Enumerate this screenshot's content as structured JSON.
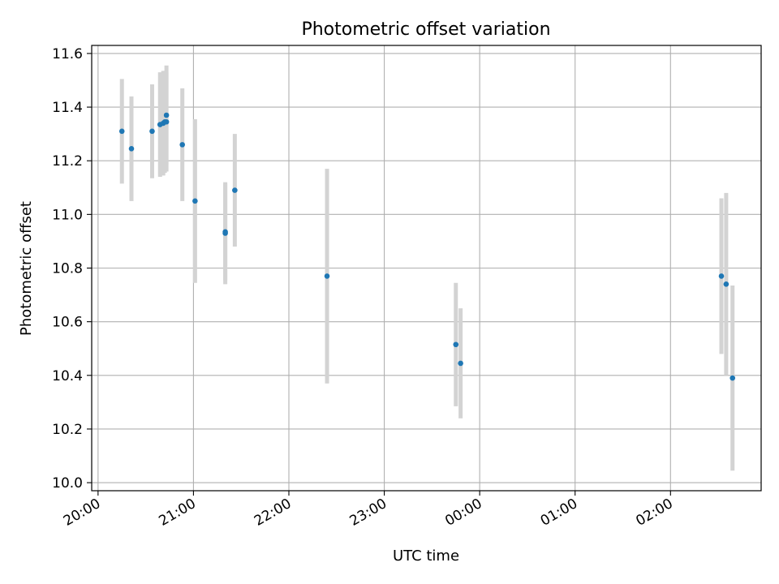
{
  "chart_data": {
    "type": "scatter",
    "title": "Photometric offset variation",
    "xlabel": "UTC time",
    "ylabel": "Photometric offset",
    "grid": true,
    "legend": "none",
    "ylim": [
      9.97,
      11.63
    ],
    "yticks": [
      "10.0",
      "10.2",
      "10.4",
      "10.6",
      "10.8",
      "11.0",
      "11.2",
      "11.4",
      "11.6"
    ],
    "xlim": [
      "19:56",
      "02:57"
    ],
    "xticks": [
      "20:00",
      "21:00",
      "22:00",
      "23:00",
      "00:00",
      "01:00",
      "02:00"
    ],
    "colors": {
      "point": "#1f77b4",
      "errorbar": "#d3d3d3",
      "grid": "#b0b0b0"
    },
    "series": [
      {
        "points": [
          {
            "x": "20:15",
            "y": 11.31,
            "err": 0.195
          },
          {
            "x": "20:21",
            "y": 11.245,
            "err": 0.195
          },
          {
            "x": "20:34",
            "y": 11.31,
            "err": 0.175
          },
          {
            "x": "20:39",
            "y": 11.335,
            "err": 0.195
          },
          {
            "x": "20:41",
            "y": 11.34,
            "err": 0.195
          },
          {
            "x": "20:42",
            "y": 11.345,
            "err": 0.19
          },
          {
            "x": "20:43",
            "y": 11.345,
            "err": 0.185
          },
          {
            "x": "20:43",
            "y": 11.37,
            "err": 0.185
          },
          {
            "x": "20:53",
            "y": 11.26,
            "err": 0.21
          },
          {
            "x": "21:01",
            "y": 11.05,
            "err": 0.305
          },
          {
            "x": "21:20",
            "y": 10.93,
            "err": 0.19
          },
          {
            "x": "21:20",
            "y": 10.935,
            "err": 0.18
          },
          {
            "x": "21:26",
            "y": 11.09,
            "err": 0.21
          },
          {
            "x": "22:24",
            "y": 10.77,
            "err": 0.4
          },
          {
            "x": "23:45",
            "y": 10.515,
            "err": 0.23
          },
          {
            "x": "23:48",
            "y": 10.445,
            "err": 0.205
          },
          {
            "x": "02:32",
            "y": 10.77,
            "err": 0.29
          },
          {
            "x": "02:35",
            "y": 10.74,
            "err": 0.34
          },
          {
            "x": "02:39",
            "y": 10.39,
            "err": 0.345
          }
        ]
      }
    ]
  }
}
